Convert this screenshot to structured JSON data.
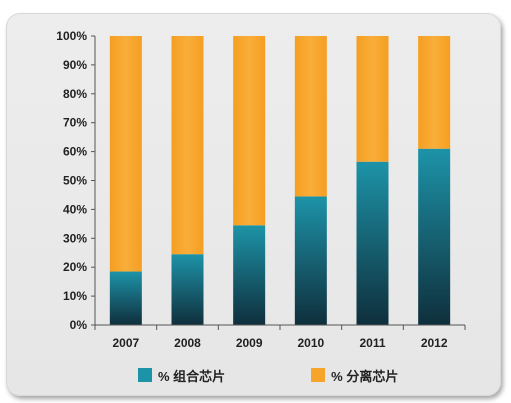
{
  "chart_data": {
    "type": "bar",
    "stacked": true,
    "categories": [
      "2007",
      "2008",
      "2009",
      "2010",
      "2011",
      "2012"
    ],
    "series": [
      {
        "name": "% 组合芯片",
        "values": [
          18.5,
          24.5,
          34.5,
          44.5,
          56.5,
          61.0
        ],
        "color": "#1d93a8"
      },
      {
        "name": "% 分离芯片",
        "values": [
          81.5,
          75.5,
          65.5,
          55.5,
          43.5,
          39.0
        ],
        "color": "#f7a42a"
      }
    ],
    "y_ticks": [
      "0%",
      "10%",
      "20%",
      "30%",
      "40%",
      "50%",
      "60%",
      "70%",
      "80%",
      "90%",
      "100%"
    ],
    "ylim": [
      0,
      100
    ],
    "grid": false,
    "legend_position": "bottom"
  },
  "colors": {
    "teal_top": "#1d93a8",
    "teal_bottom": "#0f2f3c",
    "orange_top": "#f7a42a",
    "orange_bottom": "#f8a62f"
  }
}
